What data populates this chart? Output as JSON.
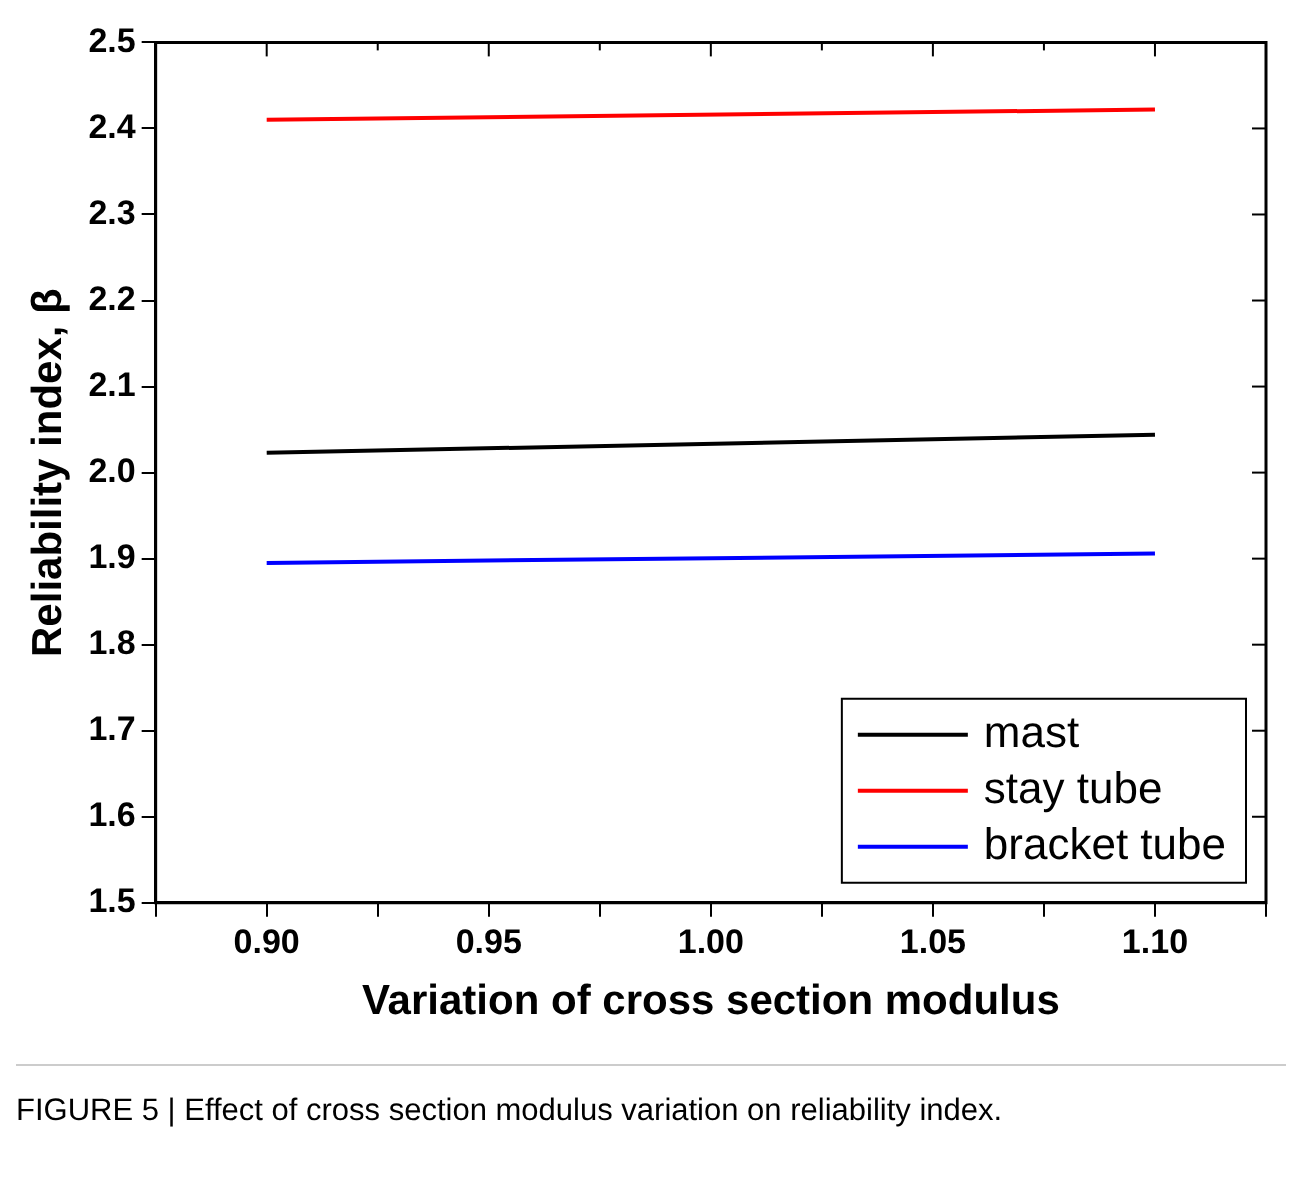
{
  "chart_data": {
    "type": "line",
    "xlabel": "Variation of cross section modulus",
    "ylabel": "Reliability index, β",
    "x": [
      0.9,
      1.1
    ],
    "series": [
      {
        "name": "mast",
        "color": "#000000",
        "values": [
          2.023,
          2.044
        ]
      },
      {
        "name": "stay tube",
        "color": "#ff0000",
        "values": [
          2.41,
          2.422
        ]
      },
      {
        "name": "bracket tube",
        "color": "#0000ff",
        "values": [
          1.895,
          1.906
        ]
      }
    ],
    "xlim": [
      0.875,
      1.125
    ],
    "xticks": [
      {
        "value": 0.875,
        "label": null
      },
      {
        "value": 0.9,
        "label": "0.90"
      },
      {
        "value": 0.925,
        "label": null
      },
      {
        "value": 0.95,
        "label": "0.95"
      },
      {
        "value": 0.975,
        "label": null
      },
      {
        "value": 1.0,
        "label": "1.00"
      },
      {
        "value": 1.025,
        "label": null
      },
      {
        "value": 1.05,
        "label": "1.05"
      },
      {
        "value": 1.075,
        "label": null
      },
      {
        "value": 1.1,
        "label": "1.10"
      },
      {
        "value": 1.125,
        "label": null
      }
    ],
    "ylim": [
      1.5,
      2.5
    ],
    "yticks": [
      1.5,
      1.6,
      1.7,
      1.8,
      1.9,
      {
        "value": 2,
        "label": "2.0"
      },
      2.1,
      2.2,
      2.3,
      2.4,
      2.5
    ],
    "grid": false,
    "legend": "bottom right",
    "marker": "none",
    "line_style": "solid",
    "annotations": [
      "FIGURE 5 | Effect of cross section modulus variation on reliability index."
    ]
  }
}
